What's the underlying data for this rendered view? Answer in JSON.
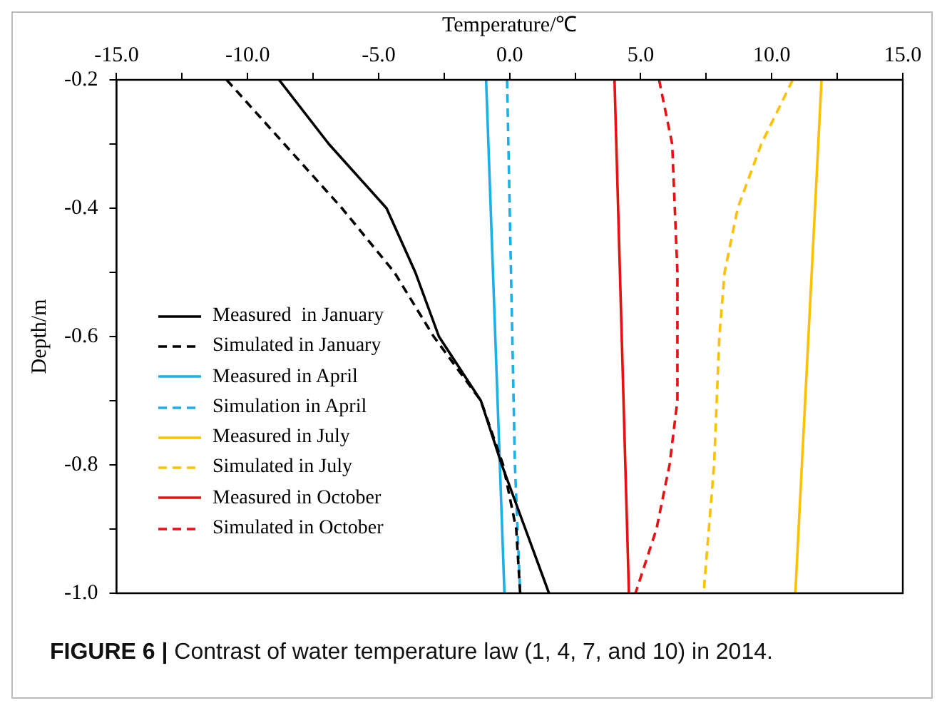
{
  "chart_data": {
    "type": "line",
    "xlabel": "Temperature/℃",
    "ylabel": "Depth/m",
    "annotations": [
      "FIGURE 6 | Contrast of water temperature law (1, 4, 7, and 10) in 2014."
    ],
    "xlim": [
      -15,
      15
    ],
    "xticks": [
      {
        "value": -15,
        "label": "-15.0"
      },
      {
        "value": -12.5,
        "label": null
      },
      {
        "value": -10,
        "label": "-10.0"
      },
      {
        "value": -7.5,
        "label": null
      },
      {
        "value": -5,
        "label": "-5.0"
      },
      {
        "value": -2.5,
        "label": null
      },
      {
        "value": 0,
        "label": "0.0"
      },
      {
        "value": 2.5,
        "label": null
      },
      {
        "value": 5,
        "label": "5.0"
      },
      {
        "value": 7.5,
        "label": null
      },
      {
        "value": 10,
        "label": "10.0"
      },
      {
        "value": 12.5,
        "label": null
      },
      {
        "value": 15,
        "label": "15.0"
      }
    ],
    "ylim": [
      -1.0,
      -0.2
    ],
    "yticks": [
      {
        "value": -1.0,
        "label": "-1.0"
      },
      {
        "value": -0.9,
        "label": null
      },
      {
        "value": -0.8,
        "label": "-0.8"
      },
      {
        "value": -0.7,
        "label": null
      },
      {
        "value": -0.6,
        "label": "-0.6"
      },
      {
        "value": -0.5,
        "label": null
      },
      {
        "value": -0.4,
        "label": "-0.4"
      },
      {
        "value": -0.3,
        "label": null
      },
      {
        "value": -0.2,
        "label": "-0.2"
      }
    ],
    "grid": false,
    "legend": "bottom left",
    "marker": "none",
    "series": [
      {
        "name": "Measured  in January",
        "color": "#000000",
        "line_style": "solid",
        "x": [
          -8.8,
          -6.9,
          -4.7,
          -3.6,
          -2.7,
          -1.1,
          -0.3,
          0.6,
          1.5
        ],
        "values": [
          -0.2,
          -0.3,
          -0.4,
          -0.5,
          -0.6,
          -0.7,
          -0.8,
          -0.9,
          -1.0
        ]
      },
      {
        "name": "Simulated in January",
        "color": "#000000",
        "line_style": "dashed",
        "x": [
          -10.8,
          -8.6,
          -6.4,
          -4.4,
          -2.9,
          -1.1,
          -0.25,
          0.25,
          0.4
        ],
        "values": [
          -0.2,
          -0.3,
          -0.4,
          -0.5,
          -0.6,
          -0.7,
          -0.8,
          -0.9,
          -1.0
        ]
      },
      {
        "name": "Measured in April",
        "color": "#1ab0e8",
        "line_style": "solid",
        "x": [
          -0.9,
          -0.2
        ],
        "values": [
          -0.2,
          -1.0
        ]
      },
      {
        "name": "Simulation in April",
        "color": "#1ab0e8",
        "line_style": "dashed",
        "x": [
          -0.1,
          0.2,
          0.4
        ],
        "values": [
          -0.2,
          -0.8,
          -1.0
        ]
      },
      {
        "name": "Measured in July",
        "color": "#ffc000",
        "line_style": "solid",
        "x": [
          11.9,
          10.9
        ],
        "values": [
          -0.2,
          -1.0
        ]
      },
      {
        "name": "Simulated in July",
        "color": "#ffc000",
        "line_style": "dashed",
        "x": [
          10.8,
          9.6,
          8.7,
          8.2,
          8.0,
          7.9,
          7.8,
          7.6,
          7.4
        ],
        "values": [
          -0.2,
          -0.3,
          -0.4,
          -0.5,
          -0.6,
          -0.7,
          -0.8,
          -0.9,
          -1.0
        ]
      },
      {
        "name": "Measured in October",
        "color": "#e81010",
        "line_style": "solid",
        "x": [
          4.0,
          4.55
        ],
        "values": [
          -0.2,
          -1.0
        ]
      },
      {
        "name": "Simulated in October",
        "color": "#e81010",
        "line_style": "dashed",
        "x": [
          5.7,
          6.2,
          6.3,
          6.4,
          6.4,
          6.4,
          6.1,
          5.6,
          4.8
        ],
        "values": [
          -0.2,
          -0.3,
          -0.4,
          -0.5,
          -0.6,
          -0.7,
          -0.8,
          -0.9,
          -1.0
        ]
      }
    ]
  }
}
